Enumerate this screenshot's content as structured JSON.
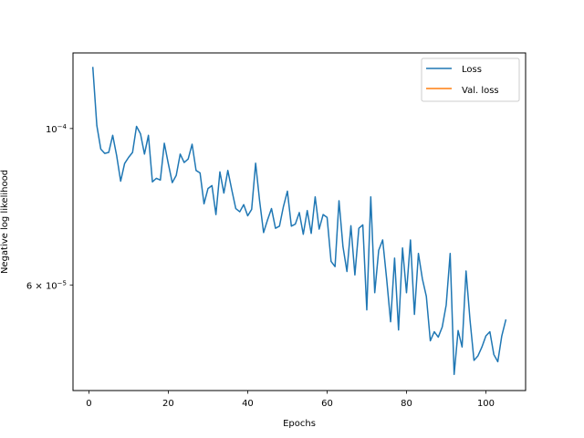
{
  "chart_data": {
    "type": "line",
    "xlabel": "Epochs",
    "ylabel": "Negative log likelihood",
    "yscale": "log",
    "xlim": [
      -4,
      110
    ],
    "ylim": [
      4.25e-05,
      0.000128
    ],
    "xticks": [
      0,
      20,
      40,
      60,
      80,
      100
    ],
    "xtick_labels": [
      "0",
      "20",
      "40",
      "60",
      "80",
      "100"
    ],
    "yticks": [
      {
        "value": 0.0001,
        "base": "10",
        "exp": "−4"
      },
      {
        "value": 6e-05,
        "base": "6 × 10",
        "exp": "−5"
      }
    ],
    "grid": false,
    "legend_position": "top-right",
    "series": [
      {
        "name": "Loss",
        "color": "#1f77b4",
        "x": [
          1,
          2,
          3,
          4,
          5,
          6,
          7,
          8,
          9,
          10,
          11,
          12,
          13,
          14,
          15,
          16,
          17,
          18,
          19,
          20,
          21,
          22,
          23,
          24,
          25,
          26,
          27,
          28,
          29,
          30,
          31,
          32,
          33,
          34,
          35,
          36,
          37,
          38,
          39,
          40,
          41,
          42,
          43,
          44,
          45,
          46,
          47,
          48,
          49,
          50,
          51,
          52,
          53,
          54,
          55,
          56,
          57,
          58,
          59,
          60,
          61,
          62,
          63,
          64,
          65,
          66,
          67,
          68,
          69,
          70,
          71,
          72,
          73,
          74,
          75,
          76,
          77,
          78,
          79,
          80,
          81,
          82,
          83,
          84,
          85,
          86,
          87,
          88,
          89,
          90,
          91,
          92,
          93,
          94,
          95,
          96,
          97,
          98,
          99,
          100,
          101,
          102,
          103,
          104,
          105
        ],
        "values": [
          0.000122,
          0.000101,
          9.35e-05,
          9.22e-05,
          9.25e-05,
          9.78e-05,
          9.15e-05,
          8.42e-05,
          8.92e-05,
          9.1e-05,
          9.25e-05,
          0.0001007,
          9.83e-05,
          9.2e-05,
          9.78e-05,
          8.4e-05,
          8.5e-05,
          8.45e-05,
          9.53e-05,
          8.92e-05,
          8.38e-05,
          8.58e-05,
          9.2e-05,
          8.95e-05,
          9.05e-05,
          9.5e-05,
          8.72e-05,
          8.65e-05,
          7.82e-05,
          8.22e-05,
          8.3e-05,
          7.55e-05,
          8.68e-05,
          8.1e-05,
          8.72e-05,
          8.18e-05,
          7.7e-05,
          7.62e-05,
          7.8e-05,
          7.52e-05,
          7.68e-05,
          8.93e-05,
          7.9e-05,
          7.12e-05,
          7.42e-05,
          7.7e-05,
          7.22e-05,
          7.27e-05,
          7.75e-05,
          8.15e-05,
          7.27e-05,
          7.32e-05,
          7.6e-05,
          7.08e-05,
          7.65e-05,
          7.1e-05,
          8e-05,
          7.2e-05,
          7.55e-05,
          7.48e-05,
          6.48e-05,
          6.37e-05,
          7.9e-05,
          6.8e-05,
          6.27e-05,
          7.28e-05,
          6.2e-05,
          7.22e-05,
          7.3e-05,
          5.53e-05,
          8e-05,
          5.85e-05,
          6.72e-05,
          6.95e-05,
          6.12e-05,
          5.32e-05,
          6.55e-05,
          5.18e-05,
          6.77e-05,
          5.85e-05,
          6.95e-05,
          5.45e-05,
          6.65e-05,
          6.12e-05,
          5.78e-05,
          5e-05,
          5.15e-05,
          5.06e-05,
          5.23e-05,
          5.62e-05,
          6.65e-05,
          4.48e-05,
          5.17e-05,
          4.9e-05,
          6.28e-05,
          5.35e-05,
          4.69e-05,
          4.76e-05,
          4.9e-05,
          5.08e-05,
          5.15e-05,
          4.78e-05,
          4.67e-05,
          5.08e-05,
          5.35e-05
        ]
      },
      {
        "name": "Val. loss",
        "color": "#ff7f0e",
        "x": [],
        "values": []
      }
    ]
  }
}
